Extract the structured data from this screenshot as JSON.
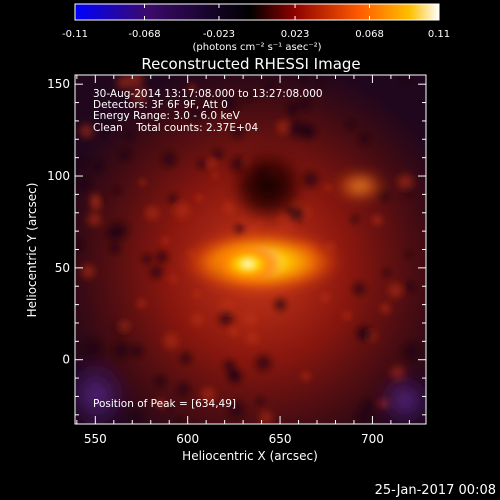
{
  "colorbar": {
    "ticks": [
      "-0.11",
      "-0.068",
      "-0.023",
      "0.023",
      "0.068",
      "0.11"
    ],
    "tick_values": [
      -0.11,
      -0.068,
      -0.023,
      0.023,
      0.068,
      0.11
    ],
    "range": [
      -0.11,
      0.11
    ],
    "units_label": "(photons cm⁻² s⁻¹ asec⁻²)"
  },
  "chart_data": {
    "type": "heatmap",
    "title": "Reconstructed RHESSI Image",
    "xlabel": "Heliocentric X (arcsec)",
    "ylabel": "Heliocentric Y (arcsec)",
    "xlim": [
      539,
      729
    ],
    "ylim": [
      -35,
      155
    ],
    "xticks": [
      "550",
      "600",
      "650",
      "700"
    ],
    "xtick_values": [
      550,
      600,
      650,
      700
    ],
    "yticks": [
      "0",
      "50",
      "100",
      "150"
    ],
    "ytick_values": [
      0,
      50,
      100,
      150
    ],
    "peak": {
      "x": 634,
      "y": 49
    },
    "annotations": [
      "30-Aug-2014 13:17:08.000 to 13:27:08.000",
      "Detectors: 3F 6F 9F, Att 0",
      "Energy Range: 3.0 - 6.0 keV",
      "Clean    Total counts: 2.37E+04"
    ],
    "peak_label": "Position of Peak = [634,49]",
    "colors": {
      "background": "#000000",
      "text": "#ffffff",
      "colormap": [
        "#0000ff",
        "#3b0a6b",
        "#000000",
        "#8b0000",
        "#ff5a00",
        "#ffc000",
        "#ffffff"
      ]
    }
  },
  "footer": {
    "date": "25-Jan-2017 00:08"
  }
}
